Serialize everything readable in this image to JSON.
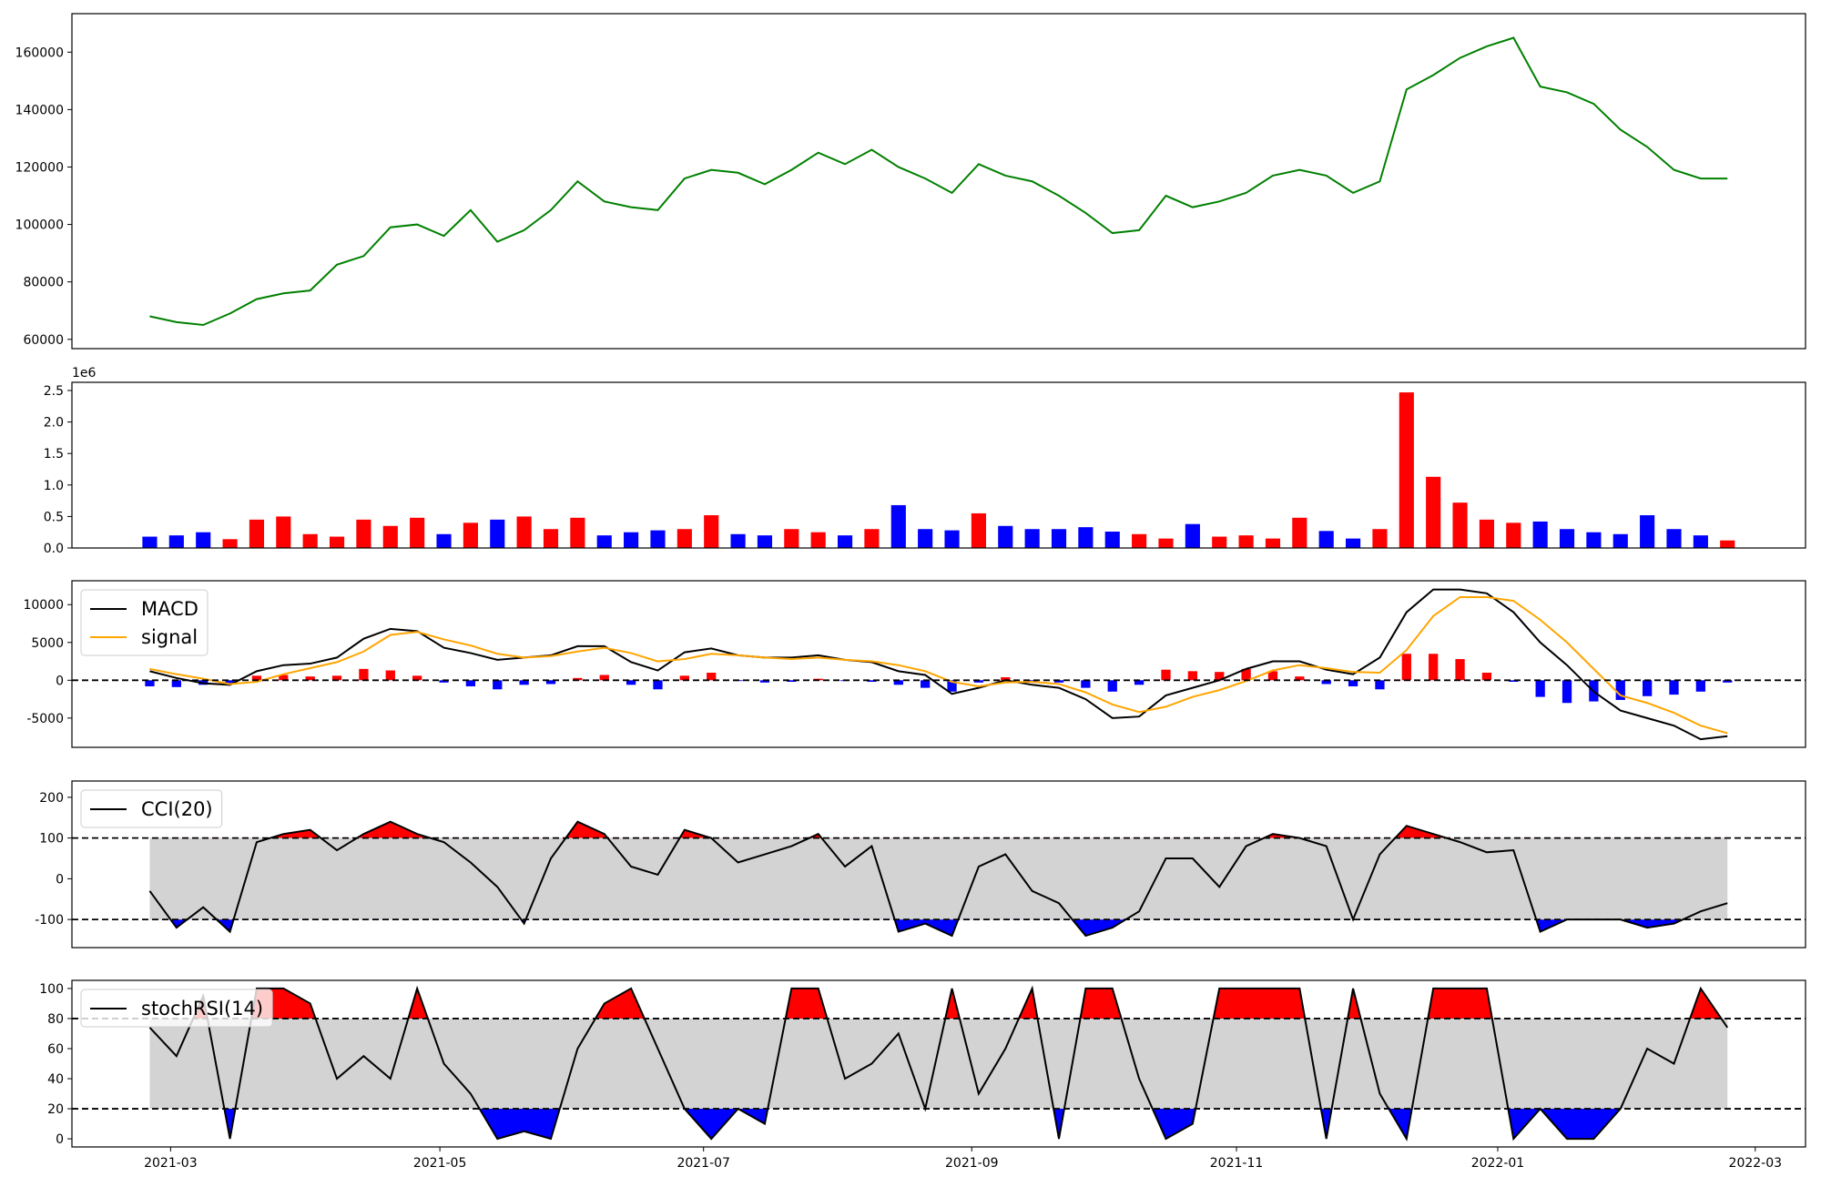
{
  "chart_data": [
    {
      "type": "line",
      "xlim": [
        -2.91,
        61.92
      ],
      "ylim": [
        56760,
        173400
      ],
      "yticks": [
        60000,
        80000,
        100000,
        120000,
        140000,
        160000
      ],
      "series": [
        {
          "color": "green",
          "values": [
            68000,
            66000,
            65000,
            69000,
            74000,
            76000,
            77000,
            86000,
            89000,
            99000,
            100000,
            96000,
            105000,
            94000,
            98000,
            105000,
            115000,
            108000,
            106000,
            105000,
            116000,
            119000,
            118000,
            114000,
            119000,
            125000,
            121000,
            126000,
            120000,
            116000,
            111000,
            121000,
            117000,
            115000,
            110000,
            104000,
            97000,
            98000,
            110000,
            106000,
            108000,
            111000,
            117000,
            119000,
            117000,
            111000,
            115000,
            147000,
            152000,
            158000,
            162000,
            165000,
            148000,
            146000,
            142000,
            133000,
            127000,
            119000,
            116000,
            116000
          ]
        }
      ]
    },
    {
      "type": "bar",
      "xlim": [
        -2.91,
        61.92
      ],
      "ylim": [
        0,
        2.63
      ],
      "offset_label": "1e6",
      "yticks": [
        {
          "value": 0,
          "label": "0.0"
        },
        0.5,
        {
          "value": 1,
          "label": "1.0"
        },
        1.5,
        {
          "value": 2,
          "label": "2.0"
        },
        2.5
      ],
      "values": [
        0.18,
        0.2,
        0.25,
        0.14,
        0.45,
        0.5,
        0.22,
        0.18,
        0.45,
        0.35,
        0.48,
        0.22,
        0.4,
        0.45,
        0.5,
        0.3,
        0.48,
        0.2,
        0.25,
        0.28,
        0.3,
        0.52,
        0.22,
        0.2,
        0.3,
        0.25,
        0.2,
        0.3,
        0.68,
        0.3,
        0.28,
        0.55,
        0.35,
        0.3,
        0.3,
        0.33,
        0.26,
        0.22,
        0.15,
        0.38,
        0.18,
        0.2,
        0.15,
        0.48,
        0.27,
        0.15,
        0.3,
        2.47,
        1.13,
        0.72,
        0.45,
        0.4,
        0.42,
        0.3,
        0.25,
        0.22,
        0.52,
        0.3,
        0.2,
        0.12
      ],
      "colors": [
        "blue",
        "blue",
        "blue",
        "red",
        "red",
        "red",
        "red",
        "red",
        "red",
        "red",
        "red",
        "blue",
        "red",
        "blue",
        "red",
        "red",
        "red",
        "blue",
        "blue",
        "blue",
        "red",
        "red",
        "blue",
        "blue",
        "red",
        "red",
        "blue",
        "red",
        "blue",
        "blue",
        "blue",
        "red",
        "blue",
        "blue",
        "blue",
        "blue",
        "blue",
        "red",
        "red",
        "blue",
        "red",
        "red",
        "red",
        "red",
        "blue",
        "blue",
        "red",
        "red",
        "red",
        "red",
        "red",
        "red",
        "blue",
        "blue",
        "blue",
        "blue",
        "blue",
        "blue",
        "blue",
        "red"
      ]
    },
    {
      "type": "line",
      "xlim": [
        -2.91,
        61.92
      ],
      "ylim": [
        -8870,
        13160
      ],
      "yticks": [
        -5000,
        0,
        5000,
        10000
      ],
      "hlines": [
        0
      ],
      "legend": "upper left",
      "series": [
        {
          "name": "MACD",
          "color": "black",
          "values": [
            1200,
            300,
            -400,
            -600,
            1200,
            2000,
            2200,
            3000,
            5500,
            6800,
            6500,
            4300,
            3600,
            2700,
            3000,
            3300,
            4500,
            4500,
            2400,
            1300,
            3700,
            4200,
            3300,
            3000,
            3000,
            3300,
            2700,
            2400,
            1200,
            700,
            -1800,
            -1000,
            0,
            -600,
            -1000,
            -2500,
            -5000,
            -4800,
            -2000,
            -1000,
            0,
            1500,
            2500,
            2500,
            1400,
            800,
            3000,
            9000,
            12000,
            12000,
            11500,
            9000,
            5000,
            2000,
            -1500,
            -4000,
            -5000,
            -6000,
            -7800,
            -7400
          ]
        },
        {
          "name": "signal",
          "color": "orange",
          "values": [
            1500,
            800,
            200,
            -500,
            -200,
            800,
            1600,
            2400,
            3800,
            6000,
            6400,
            5400,
            4600,
            3500,
            3000,
            3200,
            3800,
            4300,
            3600,
            2500,
            2800,
            3500,
            3300,
            3000,
            2800,
            3000,
            2700,
            2500,
            2000,
            1200,
            -200,
            -800,
            -300,
            -200,
            -500,
            -1600,
            -3200,
            -4200,
            -3500,
            -2200,
            -1300,
            -100,
            1300,
            2000,
            1600,
            1100,
            1000,
            4000,
            8500,
            11000,
            11000,
            10500,
            8000,
            5000,
            1500,
            -2000,
            -3000,
            -4300,
            -6000,
            -7000
          ]
        }
      ],
      "histogram": {
        "positive_color": "red",
        "negative_color": "blue",
        "values": [
          -800,
          -900,
          -600,
          -400,
          600,
          700,
          500,
          600,
          1500,
          1300,
          600,
          -300,
          -800,
          -1200,
          -600,
          -500,
          300,
          700,
          -600,
          -1200,
          600,
          1000,
          -100,
          -300,
          -200,
          200,
          -100,
          -200,
          -600,
          -1000,
          -1500,
          -300,
          400,
          -300,
          -300,
          -1000,
          -1500,
          -600,
          1400,
          1200,
          1100,
          1500,
          1200,
          500,
          -500,
          -800,
          -1200,
          3500,
          3500,
          2800,
          1000,
          -200,
          -2200,
          -3000,
          -2800,
          -2600,
          -2100,
          -1900,
          -1500,
          -300
        ]
      }
    },
    {
      "type": "line",
      "xlim": [
        -2.91,
        61.92
      ],
      "ylim": [
        -169,
        240
      ],
      "yticks": [
        -100,
        0,
        100,
        200
      ],
      "band": [
        -100,
        100
      ],
      "band_color": "lightgray",
      "fill_above": "red",
      "fill_below": "blue",
      "legend": "upper left",
      "series": [
        {
          "name": "CCI(20)",
          "color": "black",
          "values": [
            -30,
            -120,
            -70,
            -130,
            90,
            110,
            120,
            70,
            110,
            140,
            110,
            90,
            40,
            -20,
            -110,
            50,
            140,
            110,
            30,
            10,
            120,
            100,
            40,
            60,
            80,
            110,
            30,
            80,
            -130,
            -110,
            -140,
            30,
            60,
            -30,
            -60,
            -140,
            -120,
            -80,
            50,
            50,
            -20,
            80,
            110,
            100,
            80,
            -100,
            60,
            130,
            110,
            90,
            65,
            70,
            -130,
            -100,
            -100,
            -100,
            -120,
            -110,
            -80,
            -60
          ]
        }
      ]
    },
    {
      "type": "line",
      "xlim": [
        -2.91,
        61.92
      ],
      "ylim": [
        -5.4,
        105.4
      ],
      "yticks": [
        0,
        20,
        40,
        60,
        80,
        100
      ],
      "band": [
        20,
        80
      ],
      "band_color": "lightgray",
      "fill_above": "red",
      "fill_below": "blue",
      "legend": "upper left",
      "xticks": [
        {
          "value": 0.78,
          "label": "2021-03"
        },
        {
          "value": 10.85,
          "label": "2021-05"
        },
        {
          "value": 20.71,
          "label": "2021-07"
        },
        {
          "value": 30.74,
          "label": "2021-09"
        },
        {
          "value": 40.64,
          "label": "2021-11"
        },
        {
          "value": 50.41,
          "label": "2022-01"
        },
        {
          "value": 60.04,
          "label": "2022-03"
        }
      ],
      "series": [
        {
          "name": "stochRSI(14)",
          "color": "black",
          "values": [
            74,
            55,
            95,
            0,
            100,
            100,
            90,
            40,
            55,
            40,
            100,
            50,
            30,
            0,
            5,
            0,
            60,
            90,
            100,
            60,
            20,
            0,
            20,
            10,
            100,
            100,
            40,
            50,
            70,
            20,
            100,
            30,
            60,
            100,
            0,
            100,
            100,
            40,
            0,
            10,
            100,
            100,
            100,
            100,
            0,
            100,
            30,
            0,
            100,
            100,
            100,
            0,
            20,
            0,
            0,
            20,
            60,
            50,
            100,
            74
          ]
        }
      ]
    }
  ]
}
